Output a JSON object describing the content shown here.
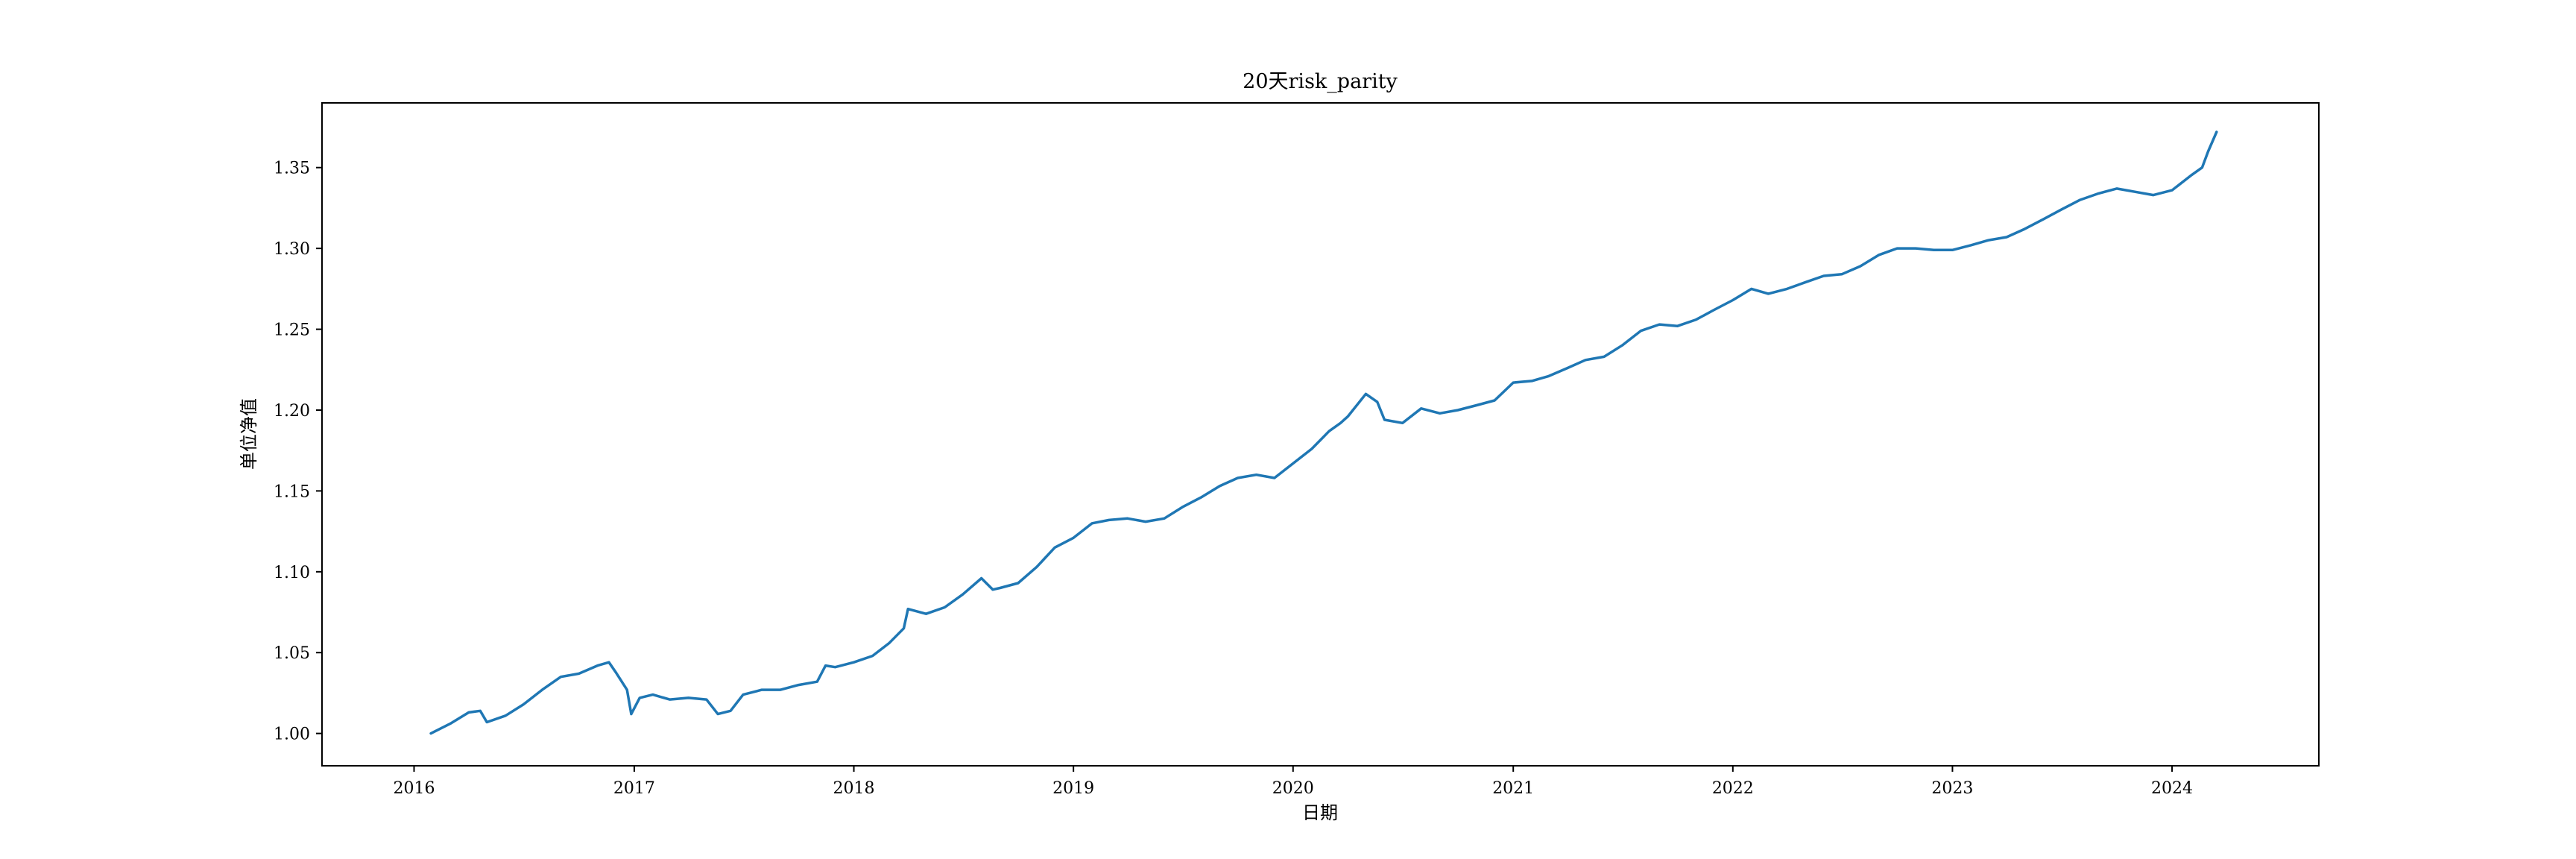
{
  "chart_data": {
    "type": "line",
    "title": "20天risk_parity",
    "xlabel": "日期",
    "ylabel": "单位净值",
    "xlim": [
      "2015-08-01",
      "2024-09-01"
    ],
    "ylim": [
      0.98,
      1.39
    ],
    "x_ticks": [
      "2016",
      "2017",
      "2018",
      "2019",
      "2020",
      "2021",
      "2022",
      "2023",
      "2024"
    ],
    "y_ticks": [
      "1.00",
      "1.05",
      "1.10",
      "1.15",
      "1.20",
      "1.25",
      "1.30",
      "1.35"
    ],
    "grid": false,
    "line_color": "#1f77b4",
    "series": [
      {
        "x": [
          "2016-01-29",
          "2016-03-01",
          "2016-04-01",
          "2016-04-20",
          "2016-05-01",
          "2016-06-01",
          "2016-07-01",
          "2016-08-01",
          "2016-09-01",
          "2016-10-01",
          "2016-11-01",
          "2016-11-20",
          "2016-12-01",
          "2016-12-20",
          "2016-12-27",
          "2017-01-10",
          "2017-02-01",
          "2017-03-01",
          "2017-04-01",
          "2017-05-01",
          "2017-05-20",
          "2017-06-10",
          "2017-07-01",
          "2017-08-01",
          "2017-09-01",
          "2017-10-01",
          "2017-11-01",
          "2017-11-15",
          "2017-12-01",
          "2018-01-01",
          "2018-02-01",
          "2018-03-01",
          "2018-03-25",
          "2018-04-01",
          "2018-05-01",
          "2018-06-01",
          "2018-07-01",
          "2018-08-01",
          "2018-08-20",
          "2018-09-01",
          "2018-10-01",
          "2018-11-01",
          "2018-12-01",
          "2019-01-01",
          "2019-02-01",
          "2019-03-01",
          "2019-04-01",
          "2019-05-01",
          "2019-06-01",
          "2019-07-01",
          "2019-08-01",
          "2019-09-01",
          "2019-10-01",
          "2019-11-01",
          "2019-12-01",
          "2020-01-01",
          "2020-02-01",
          "2020-03-01",
          "2020-03-20",
          "2020-04-01",
          "2020-05-01",
          "2020-05-20",
          "2020-06-01",
          "2020-07-01",
          "2020-08-01",
          "2020-09-01",
          "2020-10-01",
          "2020-11-01",
          "2020-12-01",
          "2021-01-01",
          "2021-02-01",
          "2021-03-01",
          "2021-04-01",
          "2021-05-01",
          "2021-06-01",
          "2021-07-01",
          "2021-08-01",
          "2021-09-01",
          "2021-10-01",
          "2021-11-01",
          "2021-12-01",
          "2022-01-01",
          "2022-02-01",
          "2022-03-01",
          "2022-04-01",
          "2022-05-01",
          "2022-06-01",
          "2022-07-01",
          "2022-08-01",
          "2022-09-01",
          "2022-10-01",
          "2022-11-01",
          "2022-12-01",
          "2023-01-01",
          "2023-02-01",
          "2023-03-01",
          "2023-04-01",
          "2023-05-01",
          "2023-06-01",
          "2023-07-01",
          "2023-08-01",
          "2023-09-01",
          "2023-10-01",
          "2023-11-01",
          "2023-12-01",
          "2024-01-01",
          "2024-02-01",
          "2024-02-20",
          "2024-03-01",
          "2024-03-15"
        ],
        "y": [
          1.0,
          1.006,
          1.013,
          1.014,
          1.007,
          1.011,
          1.018,
          1.027,
          1.035,
          1.037,
          1.042,
          1.044,
          1.038,
          1.027,
          1.012,
          1.022,
          1.024,
          1.021,
          1.022,
          1.021,
          1.012,
          1.014,
          1.024,
          1.027,
          1.027,
          1.03,
          1.032,
          1.042,
          1.041,
          1.044,
          1.048,
          1.056,
          1.065,
          1.077,
          1.074,
          1.078,
          1.086,
          1.096,
          1.089,
          1.09,
          1.093,
          1.103,
          1.115,
          1.121,
          1.13,
          1.132,
          1.133,
          1.131,
          1.133,
          1.14,
          1.146,
          1.153,
          1.158,
          1.16,
          1.158,
          1.167,
          1.176,
          1.187,
          1.192,
          1.196,
          1.21,
          1.205,
          1.194,
          1.192,
          1.201,
          1.198,
          1.2,
          1.203,
          1.206,
          1.217,
          1.218,
          1.221,
          1.226,
          1.231,
          1.233,
          1.24,
          1.249,
          1.253,
          1.252,
          1.256,
          1.262,
          1.268,
          1.275,
          1.272,
          1.275,
          1.279,
          1.283,
          1.284,
          1.289,
          1.296,
          1.3,
          1.3,
          1.299,
          1.299,
          1.302,
          1.305,
          1.307,
          1.312,
          1.318,
          1.324,
          1.33,
          1.334,
          1.337,
          1.335,
          1.333,
          1.336,
          1.345,
          1.35,
          1.36,
          1.372
        ]
      }
    ]
  }
}
